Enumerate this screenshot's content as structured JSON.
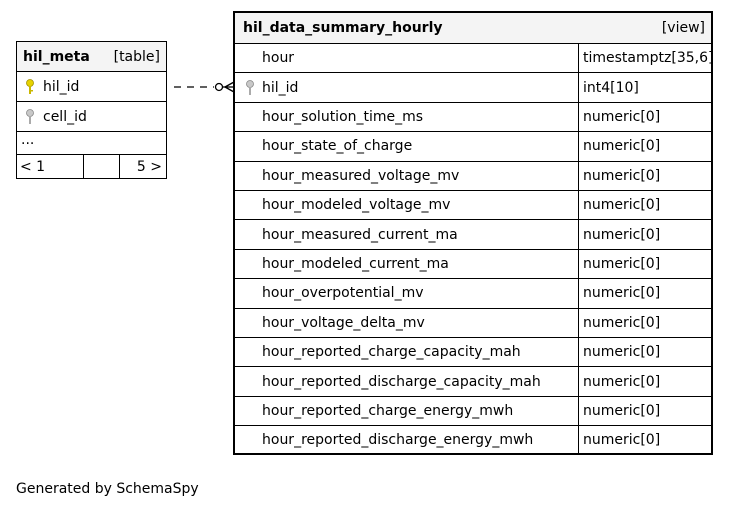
{
  "meta_table": {
    "name": "hil_meta",
    "kind": "[table]",
    "columns": [
      {
        "name": "hil_id",
        "key": "primary"
      },
      {
        "name": "cell_id",
        "key": "foreign"
      }
    ],
    "ellipsis": "...",
    "pager": {
      "prev": "< 1",
      "next": "5 >"
    }
  },
  "summary_view": {
    "name": "hil_data_summary_hourly",
    "kind": "[view]",
    "columns": [
      {
        "name": "hour",
        "type": "timestamptz[35,6]",
        "key": ""
      },
      {
        "name": "hil_id",
        "type": "int4[10]",
        "key": "foreign"
      },
      {
        "name": "hour_solution_time_ms",
        "type": "numeric[0]",
        "key": ""
      },
      {
        "name": "hour_state_of_charge",
        "type": "numeric[0]",
        "key": ""
      },
      {
        "name": "hour_measured_voltage_mv",
        "type": "numeric[0]",
        "key": ""
      },
      {
        "name": "hour_modeled_voltage_mv",
        "type": "numeric[0]",
        "key": ""
      },
      {
        "name": "hour_measured_current_ma",
        "type": "numeric[0]",
        "key": ""
      },
      {
        "name": "hour_modeled_current_ma",
        "type": "numeric[0]",
        "key": ""
      },
      {
        "name": "hour_overpotential_mv",
        "type": "numeric[0]",
        "key": ""
      },
      {
        "name": "hour_voltage_delta_mv",
        "type": "numeric[0]",
        "key": ""
      },
      {
        "name": "hour_reported_charge_capacity_mah",
        "type": "numeric[0]",
        "key": ""
      },
      {
        "name": "hour_reported_discharge_capacity_mah",
        "type": "numeric[0]",
        "key": ""
      },
      {
        "name": "hour_reported_charge_energy_mwh",
        "type": "numeric[0]",
        "key": ""
      },
      {
        "name": "hour_reported_discharge_energy_mwh",
        "type": "numeric[0]",
        "key": ""
      }
    ]
  },
  "colors": {
    "primary_key": "#e6d200",
    "foreign_key": "#b0b0b0",
    "header_bg": "#f4f4f4"
  },
  "footer": "Generated by SchemaSpy"
}
